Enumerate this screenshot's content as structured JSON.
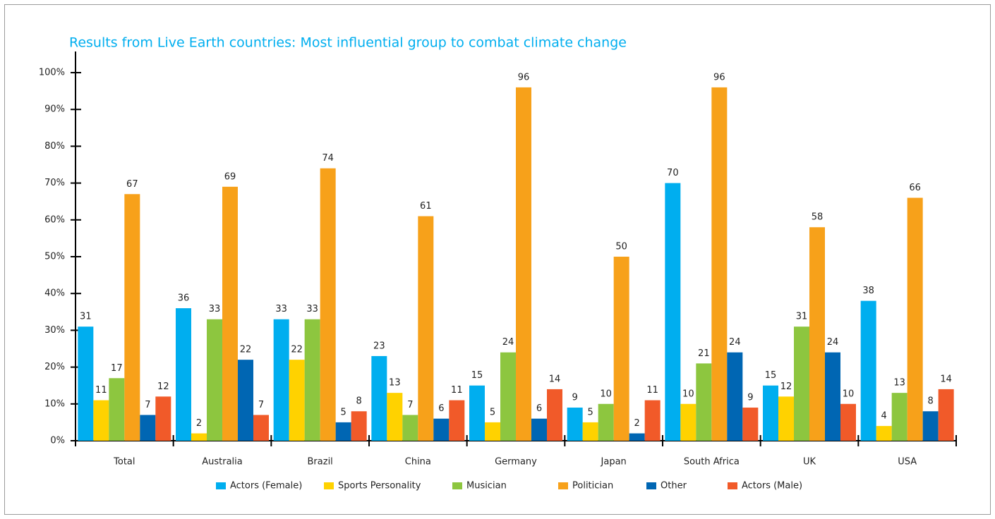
{
  "chart_data": {
    "type": "bar",
    "title": "Results from Live Earth countries: Most influential group to combat climate change",
    "categories": [
      "Total",
      "Australia",
      "Brazil",
      "China",
      "Germany",
      "Japan",
      "South Africa",
      "UK",
      "USA"
    ],
    "series": [
      {
        "name": "Actors (Female)",
        "color": "#00aeef",
        "values": [
          31,
          36,
          33,
          23,
          15,
          9,
          70,
          15,
          38
        ]
      },
      {
        "name": "Sports Personality",
        "color": "#ffd200",
        "values": [
          11,
          2,
          22,
          13,
          5,
          5,
          10,
          12,
          4
        ]
      },
      {
        "name": "Musician",
        "color": "#8dc63f",
        "values": [
          17,
          33,
          33,
          7,
          24,
          10,
          21,
          31,
          13
        ]
      },
      {
        "name": "Politician",
        "color": "#f7a11a",
        "values": [
          67,
          69,
          74,
          61,
          96,
          50,
          96,
          58,
          66
        ]
      },
      {
        "name": "Other",
        "color": "#0066b3",
        "values": [
          7,
          22,
          5,
          6,
          6,
          2,
          24,
          24,
          8
        ]
      },
      {
        "name": "Actors (Male)",
        "color": "#f15a29",
        "values": [
          12,
          7,
          8,
          11,
          14,
          11,
          9,
          10,
          14
        ]
      }
    ],
    "ylim": [
      0,
      100
    ],
    "yticks": [
      {
        "value": 0,
        "label": "0%"
      },
      {
        "value": 10,
        "label": "10%"
      },
      {
        "value": 20,
        "label": "20%"
      },
      {
        "value": 30,
        "label": "30%"
      },
      {
        "value": 40,
        "label": "40%"
      },
      {
        "value": 50,
        "label": "50%"
      },
      {
        "value": 60,
        "label": "60%"
      },
      {
        "value": 70,
        "label": "70%"
      },
      {
        "value": 80,
        "label": "80%"
      },
      {
        "value": 90,
        "label": "90%"
      },
      {
        "value": 100,
        "label": "100%"
      }
    ],
    "grid": false,
    "legend": "bottom"
  }
}
